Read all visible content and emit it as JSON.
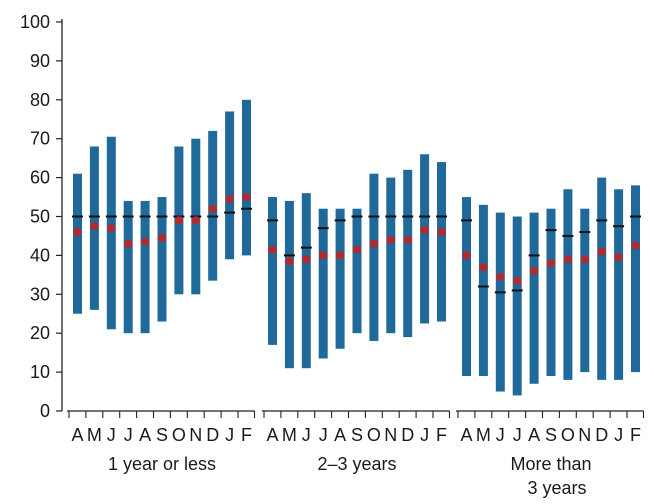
{
  "chart_data": {
    "type": "range-bar",
    "ylim": [
      0,
      100
    ],
    "yticks": [
      0,
      10,
      20,
      30,
      40,
      50,
      60,
      70,
      80,
      90,
      100
    ],
    "month_labels": [
      "A",
      "M",
      "J",
      "J",
      "A",
      "S",
      "O",
      "N",
      "D",
      "J",
      "F"
    ],
    "colors": {
      "bar": "#1f6a9a",
      "mean": "#b22a2e",
      "median": "#111111",
      "axis": "#222222"
    },
    "groups": [
      {
        "label_lines": [
          "1 year or less"
        ],
        "bars": [
          {
            "month": "A",
            "low": 25,
            "high": 61,
            "median": 50,
            "mean": 46
          },
          {
            "month": "M",
            "low": 26,
            "high": 68,
            "median": 50,
            "mean": 47.5
          },
          {
            "month": "J",
            "low": 21,
            "high": 70.5,
            "median": 50,
            "mean": 47
          },
          {
            "month": "J",
            "low": 20,
            "high": 54,
            "median": 50,
            "mean": 43
          },
          {
            "month": "A",
            "low": 20,
            "high": 54,
            "median": 50,
            "mean": 43.5
          },
          {
            "month": "S",
            "low": 23,
            "high": 55,
            "median": 50,
            "mean": 44.5
          },
          {
            "month": "O",
            "low": 30,
            "high": 68,
            "median": 50,
            "mean": 49
          },
          {
            "month": "N",
            "low": 30,
            "high": 70,
            "median": 50,
            "mean": 49
          },
          {
            "month": "D",
            "low": 33.5,
            "high": 72,
            "median": 50,
            "mean": 52
          },
          {
            "month": "J",
            "low": 39,
            "high": 77,
            "median": 51,
            "mean": 54.5
          },
          {
            "month": "F",
            "low": 40,
            "high": 80,
            "median": 52,
            "mean": 55
          }
        ]
      },
      {
        "label_lines": [
          "2–3 years"
        ],
        "bars": [
          {
            "month": "A",
            "low": 17,
            "high": 55,
            "median": 49,
            "mean": 41.5
          },
          {
            "month": "M",
            "low": 11,
            "high": 54,
            "median": 40,
            "mean": 38.5
          },
          {
            "month": "J",
            "low": 11,
            "high": 56,
            "median": 42,
            "mean": 39
          },
          {
            "month": "J",
            "low": 13.5,
            "high": 52,
            "median": 47,
            "mean": 40
          },
          {
            "month": "A",
            "low": 16,
            "high": 52,
            "median": 49,
            "mean": 40
          },
          {
            "month": "S",
            "low": 20,
            "high": 52,
            "median": 50,
            "mean": 41.5
          },
          {
            "month": "O",
            "low": 18,
            "high": 61,
            "median": 50,
            "mean": 43
          },
          {
            "month": "N",
            "low": 20,
            "high": 60,
            "median": 50,
            "mean": 44
          },
          {
            "month": "D",
            "low": 19,
            "high": 62,
            "median": 50,
            "mean": 44
          },
          {
            "month": "J",
            "low": 22.5,
            "high": 66,
            "median": 50,
            "mean": 46.5
          },
          {
            "month": "F",
            "low": 23,
            "high": 64,
            "median": 50,
            "mean": 46
          }
        ]
      },
      {
        "label_lines": [
          "More than",
          "3 years"
        ],
        "bars": [
          {
            "month": "A",
            "low": 9,
            "high": 55,
            "median": 49,
            "mean": 40
          },
          {
            "month": "M",
            "low": 9,
            "high": 53,
            "median": 32,
            "mean": 37
          },
          {
            "month": "J",
            "low": 5,
            "high": 51,
            "median": 30.5,
            "mean": 34.5
          },
          {
            "month": "J",
            "low": 4,
            "high": 50,
            "median": 31,
            "mean": 33.5
          },
          {
            "month": "A",
            "low": 7,
            "high": 51,
            "median": 40,
            "mean": 36
          },
          {
            "month": "S",
            "low": 9,
            "high": 52,
            "median": 46.5,
            "mean": 38
          },
          {
            "month": "O",
            "low": 8,
            "high": 57,
            "median": 45,
            "mean": 39
          },
          {
            "month": "N",
            "low": 10,
            "high": 52,
            "median": 46,
            "mean": 39
          },
          {
            "month": "D",
            "low": 8,
            "high": 60,
            "median": 49,
            "mean": 41
          },
          {
            "month": "J",
            "low": 8,
            "high": 57,
            "median": 47.5,
            "mean": 39.5
          },
          {
            "month": "F",
            "low": 10,
            "high": 58,
            "median": 50,
            "mean": 42.5
          }
        ]
      }
    ]
  }
}
